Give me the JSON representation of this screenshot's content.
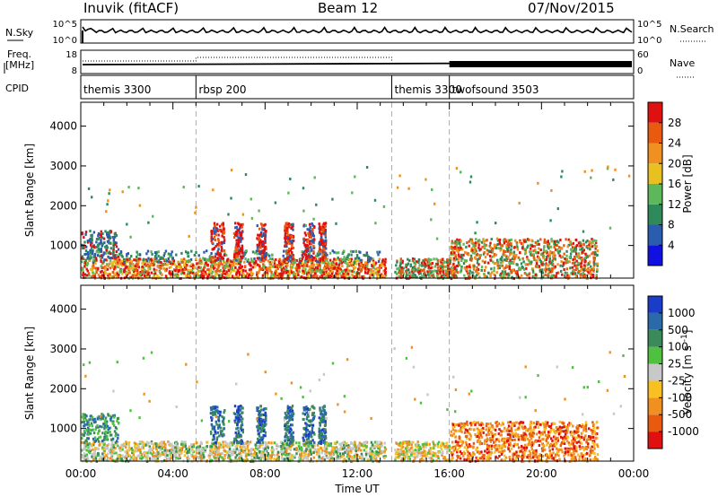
{
  "header": {
    "station": "Inuvik (fitACF)",
    "beam": "Beam 12",
    "date": "07/Nov/2015"
  },
  "panel_labels": {
    "nsky": "N.Sky",
    "nsearch": "N.Search",
    "freq_line1": "Freq.",
    "freq_line2": "[MHz]",
    "nave": "Nave",
    "cpid": "CPID"
  },
  "noise_axis": {
    "top": "10^5",
    "bottom": "10^0"
  },
  "freq_axis": {
    "top": "18",
    "bottom": "8"
  },
  "nave_axis": {
    "top": "60",
    "bottom": "0"
  },
  "cpid_segments": [
    {
      "label": "themis 3300",
      "start_hour": 0
    },
    {
      "label": "rbsp 200",
      "start_hour": 5.0
    },
    {
      "label": "themis 3300",
      "start_hour": 13.5
    },
    {
      "label": "twofsound 3503",
      "start_hour": 16.0
    }
  ],
  "chart_data": [
    {
      "type": "heatmap",
      "title": "Power",
      "ylabel": "Slant Range [km]",
      "xlabel": "",
      "ylim": [
        180,
        4600
      ],
      "yticks": [
        1000,
        2000,
        3000,
        4000
      ],
      "colorbar": {
        "label": "Power [dB]",
        "ticks": [
          "4",
          "8",
          "12",
          "16",
          "20",
          "24",
          "28"
        ],
        "colors": [
          "#1010e0",
          "#2a5cb0",
          "#2e8a5a",
          "#5cb85a",
          "#e8c020",
          "#f09020",
          "#e85a10",
          "#e01010"
        ]
      },
      "description_values": [
        {
          "hour_start": 0,
          "hour_end": 1.5,
          "range_km": [
            200,
            1300
          ]
        },
        {
          "hour_start": 5.5,
          "hour_end": 11.0,
          "range_km": [
            600,
            3000
          ]
        },
        {
          "hour_start": 16.0,
          "hour_end": 22.5,
          "range_km": [
            200,
            1400
          ]
        }
      ]
    },
    {
      "type": "heatmap",
      "title": "Velocity",
      "ylabel": "Slant Range [km]",
      "xlabel": "Time UT",
      "ylim": [
        180,
        4600
      ],
      "yticks": [
        1000,
        2000,
        3000,
        4000
      ],
      "xticks": [
        "00:00",
        "04:00",
        "08:00",
        "12:00",
        "16:00",
        "20:00",
        "00:00"
      ],
      "colorbar": {
        "label": "Velocity [m s-1]",
        "ticks": [
          "1000",
          "500",
          "100",
          "25",
          "-25",
          "-100",
          "-500",
          "-1000"
        ],
        "colors": [
          "#1a3cc8",
          "#2a6aa8",
          "#3a8a5a",
          "#50c040",
          "#c8c8c8",
          "#f8c020",
          "#f09020",
          "#e85a10",
          "#e01010"
        ]
      }
    }
  ],
  "colorbar_power_label": "Power [dB]",
  "colorbar_velocity_label": "Velocity",
  "colorbar_velocity_unit": "[m s",
  "colorbar_velocity_sup": "-1",
  "colorbar_velocity_close": "]",
  "x_axis_title": "Time UT",
  "y_axis_title": "Slant Range [km]"
}
